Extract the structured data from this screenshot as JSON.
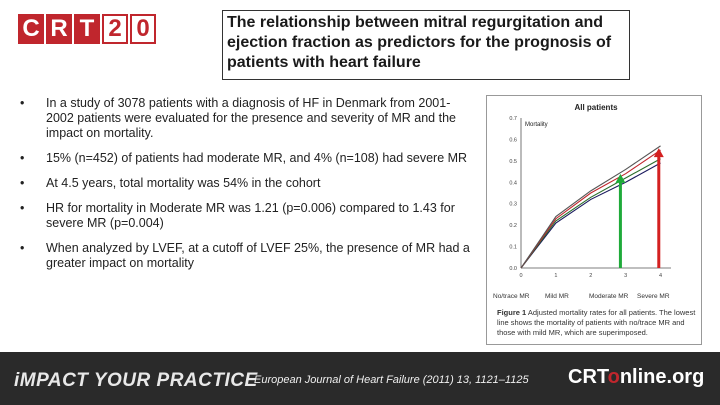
{
  "logo": {
    "letters": [
      "C",
      "R",
      "T",
      "2",
      "0"
    ]
  },
  "title": "The relationship between mitral regurgitation and ejection fraction as predictors for the prognosis of patients with heart failure",
  "bullets": [
    "In a study of 3078 patients with a diagnosis of HF in Denmark from 2001-2002 patients were evaluated for the presence and severity of MR and the impact on mortality.",
    "15% (n=452) of patients had moderate MR, and 4% (n=108) had severe MR",
    "At 4.5 years, total mortality was 54% in the cohort",
    "HR for mortality in Moderate MR was 1.21 (p=0.006) compared to 1.43 for severe MR (p=0.004)",
    "When analyzed by LVEF, at a cutoff of LVEF 25%, the presence of MR had a greater impact on mortality"
  ],
  "bullet_symbol": "•",
  "chart_data": {
    "type": "line",
    "title": "All patients",
    "ylabel": "Mortality",
    "x": [
      0,
      1,
      2,
      3,
      4
    ],
    "xlim": [
      0,
      4.3
    ],
    "ylim": [
      0,
      0.7
    ],
    "yticks": [
      "0.0",
      "0.1",
      "0.2",
      "0.3",
      "0.4",
      "0.5",
      "0.6",
      "0.7"
    ],
    "xticks": [
      "0",
      "1",
      "2",
      "3",
      "4"
    ],
    "series": [
      {
        "name": "No/trace MR",
        "color": "#1a1a5e",
        "values": [
          0,
          0.21,
          0.32,
          0.4,
          0.49
        ]
      },
      {
        "name": "Mild MR",
        "color": "#2b6e2b",
        "values": [
          0,
          0.22,
          0.33,
          0.42,
          0.51
        ]
      },
      {
        "name": "Moderate MR",
        "color": "#c0262d",
        "values": [
          0,
          0.23,
          0.35,
          0.44,
          0.55
        ]
      },
      {
        "name": "Severe MR",
        "color": "#555555",
        "values": [
          0,
          0.24,
          0.36,
          0.46,
          0.57
        ]
      }
    ],
    "legend": [
      "No/trace MR",
      "Mild MR",
      "Moderate MR",
      "Severe MR"
    ],
    "arrows": [
      {
        "color": "#1faa3a",
        "x": 2.85,
        "y_top": 0.43
      },
      {
        "color": "#d42020",
        "x": 3.95,
        "y_top": 0.55
      }
    ],
    "caption_label": "Figure 1",
    "caption": "Adjusted mortality rates for all patients. The lowest line shows the mortality of patients with no/trace MR and those with mild MR, which are superimposed."
  },
  "footer": {
    "left": "iMPACT YOUR PRACTICE",
    "citation": "European Journal of Heart Failure (2011) 13, 1121–1125",
    "brand_main": "CRT",
    "brand_accent": "o",
    "brand_rest": "nline.org"
  }
}
